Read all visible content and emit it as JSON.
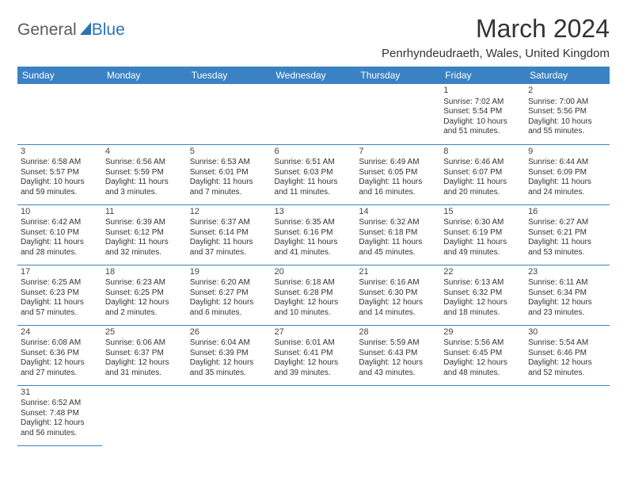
{
  "logo": {
    "text1": "General",
    "text2": "Blue"
  },
  "title": "March 2024",
  "location": "Penrhyndeudraeth, Wales, United Kingdom",
  "header_bg": "#3a82c4",
  "header_fg": "#ffffff",
  "divider_color": "#3a82c4",
  "weekdays": [
    "Sunday",
    "Monday",
    "Tuesday",
    "Wednesday",
    "Thursday",
    "Friday",
    "Saturday"
  ],
  "weeks": [
    [
      null,
      null,
      null,
      null,
      null,
      {
        "n": "1",
        "sr": "Sunrise: 7:02 AM",
        "ss": "Sunset: 5:54 PM",
        "d1": "Daylight: 10 hours",
        "d2": "and 51 minutes."
      },
      {
        "n": "2",
        "sr": "Sunrise: 7:00 AM",
        "ss": "Sunset: 5:56 PM",
        "d1": "Daylight: 10 hours",
        "d2": "and 55 minutes."
      }
    ],
    [
      {
        "n": "3",
        "sr": "Sunrise: 6:58 AM",
        "ss": "Sunset: 5:57 PM",
        "d1": "Daylight: 10 hours",
        "d2": "and 59 minutes."
      },
      {
        "n": "4",
        "sr": "Sunrise: 6:56 AM",
        "ss": "Sunset: 5:59 PM",
        "d1": "Daylight: 11 hours",
        "d2": "and 3 minutes."
      },
      {
        "n": "5",
        "sr": "Sunrise: 6:53 AM",
        "ss": "Sunset: 6:01 PM",
        "d1": "Daylight: 11 hours",
        "d2": "and 7 minutes."
      },
      {
        "n": "6",
        "sr": "Sunrise: 6:51 AM",
        "ss": "Sunset: 6:03 PM",
        "d1": "Daylight: 11 hours",
        "d2": "and 11 minutes."
      },
      {
        "n": "7",
        "sr": "Sunrise: 6:49 AM",
        "ss": "Sunset: 6:05 PM",
        "d1": "Daylight: 11 hours",
        "d2": "and 16 minutes."
      },
      {
        "n": "8",
        "sr": "Sunrise: 6:46 AM",
        "ss": "Sunset: 6:07 PM",
        "d1": "Daylight: 11 hours",
        "d2": "and 20 minutes."
      },
      {
        "n": "9",
        "sr": "Sunrise: 6:44 AM",
        "ss": "Sunset: 6:09 PM",
        "d1": "Daylight: 11 hours",
        "d2": "and 24 minutes."
      }
    ],
    [
      {
        "n": "10",
        "sr": "Sunrise: 6:42 AM",
        "ss": "Sunset: 6:10 PM",
        "d1": "Daylight: 11 hours",
        "d2": "and 28 minutes."
      },
      {
        "n": "11",
        "sr": "Sunrise: 6:39 AM",
        "ss": "Sunset: 6:12 PM",
        "d1": "Daylight: 11 hours",
        "d2": "and 32 minutes."
      },
      {
        "n": "12",
        "sr": "Sunrise: 6:37 AM",
        "ss": "Sunset: 6:14 PM",
        "d1": "Daylight: 11 hours",
        "d2": "and 37 minutes."
      },
      {
        "n": "13",
        "sr": "Sunrise: 6:35 AM",
        "ss": "Sunset: 6:16 PM",
        "d1": "Daylight: 11 hours",
        "d2": "and 41 minutes."
      },
      {
        "n": "14",
        "sr": "Sunrise: 6:32 AM",
        "ss": "Sunset: 6:18 PM",
        "d1": "Daylight: 11 hours",
        "d2": "and 45 minutes."
      },
      {
        "n": "15",
        "sr": "Sunrise: 6:30 AM",
        "ss": "Sunset: 6:19 PM",
        "d1": "Daylight: 11 hours",
        "d2": "and 49 minutes."
      },
      {
        "n": "16",
        "sr": "Sunrise: 6:27 AM",
        "ss": "Sunset: 6:21 PM",
        "d1": "Daylight: 11 hours",
        "d2": "and 53 minutes."
      }
    ],
    [
      {
        "n": "17",
        "sr": "Sunrise: 6:25 AM",
        "ss": "Sunset: 6:23 PM",
        "d1": "Daylight: 11 hours",
        "d2": "and 57 minutes."
      },
      {
        "n": "18",
        "sr": "Sunrise: 6:23 AM",
        "ss": "Sunset: 6:25 PM",
        "d1": "Daylight: 12 hours",
        "d2": "and 2 minutes."
      },
      {
        "n": "19",
        "sr": "Sunrise: 6:20 AM",
        "ss": "Sunset: 6:27 PM",
        "d1": "Daylight: 12 hours",
        "d2": "and 6 minutes."
      },
      {
        "n": "20",
        "sr": "Sunrise: 6:18 AM",
        "ss": "Sunset: 6:28 PM",
        "d1": "Daylight: 12 hours",
        "d2": "and 10 minutes."
      },
      {
        "n": "21",
        "sr": "Sunrise: 6:16 AM",
        "ss": "Sunset: 6:30 PM",
        "d1": "Daylight: 12 hours",
        "d2": "and 14 minutes."
      },
      {
        "n": "22",
        "sr": "Sunrise: 6:13 AM",
        "ss": "Sunset: 6:32 PM",
        "d1": "Daylight: 12 hours",
        "d2": "and 18 minutes."
      },
      {
        "n": "23",
        "sr": "Sunrise: 6:11 AM",
        "ss": "Sunset: 6:34 PM",
        "d1": "Daylight: 12 hours",
        "d2": "and 23 minutes."
      }
    ],
    [
      {
        "n": "24",
        "sr": "Sunrise: 6:08 AM",
        "ss": "Sunset: 6:36 PM",
        "d1": "Daylight: 12 hours",
        "d2": "and 27 minutes."
      },
      {
        "n": "25",
        "sr": "Sunrise: 6:06 AM",
        "ss": "Sunset: 6:37 PM",
        "d1": "Daylight: 12 hours",
        "d2": "and 31 minutes."
      },
      {
        "n": "26",
        "sr": "Sunrise: 6:04 AM",
        "ss": "Sunset: 6:39 PM",
        "d1": "Daylight: 12 hours",
        "d2": "and 35 minutes."
      },
      {
        "n": "27",
        "sr": "Sunrise: 6:01 AM",
        "ss": "Sunset: 6:41 PM",
        "d1": "Daylight: 12 hours",
        "d2": "and 39 minutes."
      },
      {
        "n": "28",
        "sr": "Sunrise: 5:59 AM",
        "ss": "Sunset: 6:43 PM",
        "d1": "Daylight: 12 hours",
        "d2": "and 43 minutes."
      },
      {
        "n": "29",
        "sr": "Sunrise: 5:56 AM",
        "ss": "Sunset: 6:45 PM",
        "d1": "Daylight: 12 hours",
        "d2": "and 48 minutes."
      },
      {
        "n": "30",
        "sr": "Sunrise: 5:54 AM",
        "ss": "Sunset: 6:46 PM",
        "d1": "Daylight: 12 hours",
        "d2": "and 52 minutes."
      }
    ],
    [
      {
        "n": "31",
        "sr": "Sunrise: 6:52 AM",
        "ss": "Sunset: 7:48 PM",
        "d1": "Daylight: 12 hours",
        "d2": "and 56 minutes."
      },
      null,
      null,
      null,
      null,
      null,
      null
    ]
  ]
}
